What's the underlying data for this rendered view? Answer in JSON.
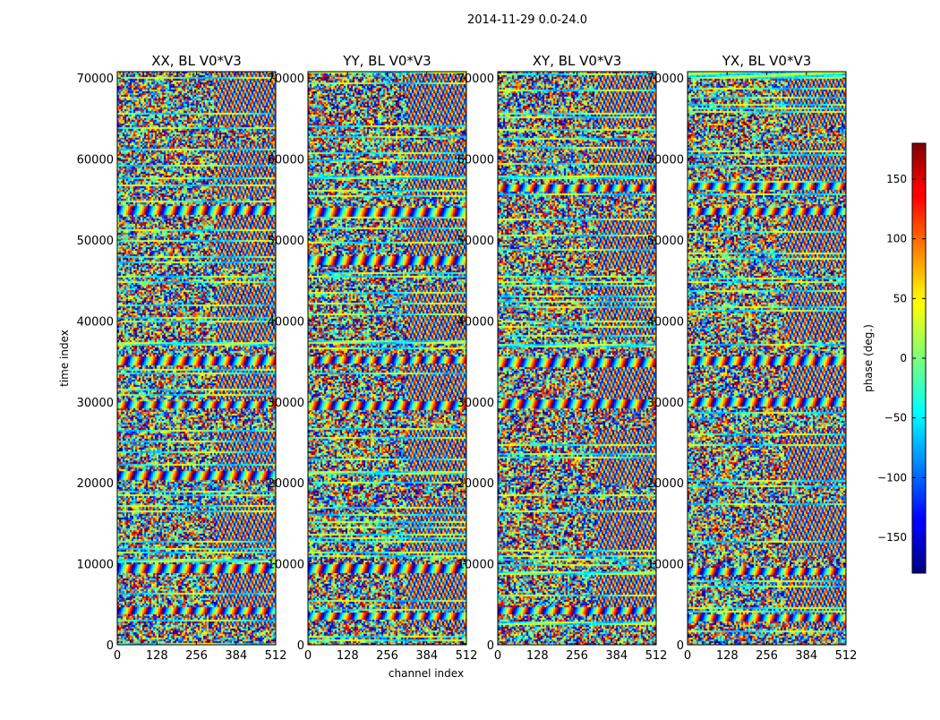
{
  "figure": {
    "suptitle": "2014-11-29 0.0-24.0",
    "xlabel": "channel index",
    "ylabel": "time index",
    "colorbar_label": "phase (deg.)"
  },
  "chart_data": {
    "type": "heatmap",
    "colormap": "jet",
    "x_ticks": [
      "0",
      "128",
      "256",
      "384",
      "512"
    ],
    "x_tick_values": [
      0,
      128,
      256,
      384,
      512
    ],
    "y_ticks": [
      "0",
      "10000",
      "20000",
      "30000",
      "40000",
      "50000",
      "60000",
      "70000"
    ],
    "y_tick_values": [
      0,
      10000,
      20000,
      30000,
      40000,
      50000,
      60000,
      70000
    ],
    "xlim": [
      0,
      512
    ],
    "ylim": [
      0,
      70800
    ],
    "colorbar": {
      "ticks": [
        "150",
        "100",
        "50",
        "0",
        "−50",
        "−100",
        "−150"
      ],
      "tick_values": [
        150,
        100,
        50,
        0,
        -50,
        -100,
        -150
      ],
      "range": [
        -180,
        180
      ]
    },
    "panels": [
      {
        "title": "XX, BL V0*V3",
        "seed": 11,
        "bands": [
          9500,
          4300,
          53800,
          35200,
          29800,
          21000
        ]
      },
      {
        "title": "YY, BL V0*V3",
        "seed": 23,
        "bands": [
          9500,
          3700,
          53500,
          35300,
          29600,
          47600
        ]
      },
      {
        "title": "XY, BL V0*V3",
        "seed": 37,
        "bands": [
          4300,
          56500,
          35000,
          29900
        ]
      },
      {
        "title": "YX, BL V0*V3",
        "seed": 53,
        "bands": [
          9200,
          3400,
          56800,
          53600,
          35200,
          30100
        ]
      }
    ]
  }
}
